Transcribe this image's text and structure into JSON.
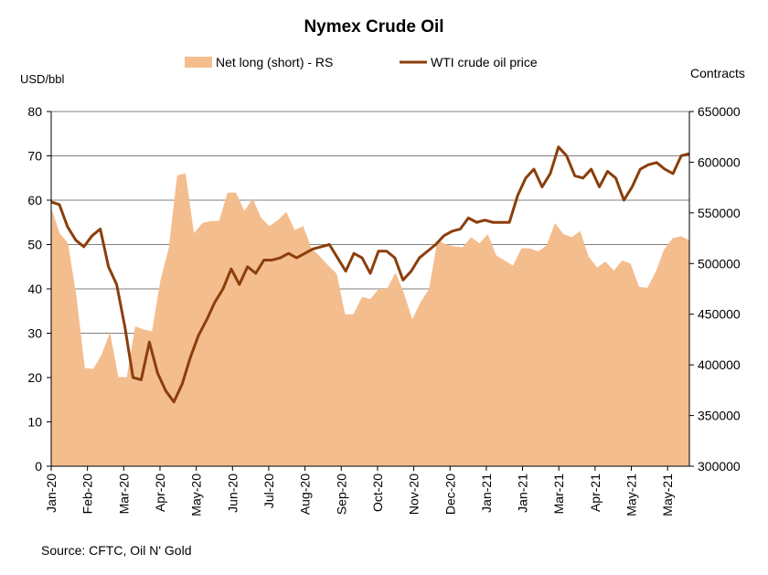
{
  "chart_data": {
    "type": "area+line",
    "title": "Nymex Crude Oil",
    "ylabel_left": "USD/bbl",
    "ylabel_right": "Contracts",
    "source": "Source: CFTC, Oil N' Gold",
    "y_left": {
      "min": 0,
      "max": 80,
      "ticks": [
        "0",
        "10",
        "20",
        "30",
        "40",
        "50",
        "60",
        "70",
        "80"
      ]
    },
    "y_right": {
      "min": 300000,
      "max": 650000,
      "ticks": [
        "300000",
        "350000",
        "400000",
        "450000",
        "500000",
        "550000",
        "600000",
        "650000"
      ]
    },
    "x_ticks": [
      "Jan-20",
      "Feb-20",
      "Mar-20",
      "Apr-20",
      "May-20",
      "Jun-20",
      "Jul-20",
      "Aug-20",
      "Sep-20",
      "Oct-20",
      "Nov-20",
      "Dec-20",
      "Jan-21",
      "Jan-21",
      "Mar-21",
      "Apr-21",
      "May-21",
      "May-21"
    ],
    "x_start": "2020-01-07",
    "x_end": "2021-06-08",
    "colors": {
      "area": "#F4BD8E",
      "line": "#8B3E0B",
      "grid": "#808080",
      "axis": "#000000"
    },
    "legend": {
      "placement": "top",
      "entries": [
        "Net long (short) - RS",
        "WTI crude oil price"
      ]
    },
    "series": [
      {
        "name": "Net long (short) - RS",
        "axis": "right",
        "type": "area",
        "values": [
          555000,
          530000,
          520000,
          468000,
          397000,
          396000,
          410000,
          432000,
          388000,
          388000,
          438000,
          435000,
          433000,
          483000,
          515000,
          587000,
          589000,
          530000,
          540000,
          542000,
          542000,
          570000,
          570000,
          552000,
          564000,
          545000,
          537000,
          543000,
          551000,
          533000,
          537000,
          515000,
          507000,
          498000,
          490000,
          450000,
          450000,
          467000,
          465000,
          475000,
          475000,
          491000,
          471000,
          445000,
          462000,
          475000,
          523000,
          519000,
          517000,
          516000,
          526000,
          520000,
          529000,
          508000,
          503000,
          498000,
          515000,
          515000,
          512000,
          518000,
          540000,
          529000,
          526000,
          532000,
          507000,
          496000,
          502000,
          493000,
          503000,
          500000,
          477000,
          476000,
          492000,
          514000,
          525000,
          527000,
          523000
        ]
      },
      {
        "name": "WTI crude oil price",
        "axis": "left",
        "type": "line",
        "values": [
          59.6,
          59,
          54,
          51,
          49.5,
          52,
          53.5,
          45,
          41,
          31.5,
          20,
          19.5,
          28,
          21,
          17,
          14.5,
          18.5,
          24.5,
          29.5,
          33,
          37,
          40,
          44.5,
          41,
          45,
          43.5,
          46.5,
          46.5,
          47,
          48,
          47,
          48,
          49,
          49.5,
          50,
          47,
          44,
          48,
          47,
          43.5,
          48.5,
          48.5,
          47,
          42,
          44,
          47,
          48.5,
          50,
          52,
          53,
          53.5,
          56,
          55,
          55.5,
          55,
          55,
          55,
          61,
          65,
          67,
          63,
          66,
          72,
          70,
          65.5,
          65,
          67,
          63,
          66.5,
          65,
          60,
          63,
          67,
          68,
          68.5,
          67,
          66,
          70,
          70.5
        ]
      }
    ]
  }
}
